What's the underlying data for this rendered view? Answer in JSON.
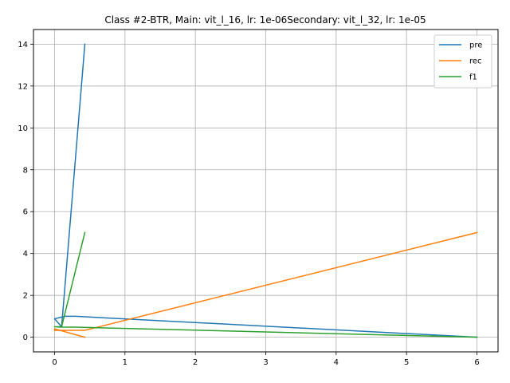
{
  "chart_data": {
    "type": "line",
    "title": "Class #2-BTR, Main: vit_l_16, lr: 1e-06Secondary: vit_l_32, lr: 1e-05",
    "xlabel": "",
    "ylabel": "",
    "xlim": [
      -0.3,
      6.3
    ],
    "ylim": [
      -0.7,
      14.7
    ],
    "xticks": [
      0,
      1,
      2,
      3,
      4,
      5,
      6
    ],
    "yticks": [
      0,
      2,
      4,
      6,
      8,
      10,
      12,
      14
    ],
    "grid": true,
    "legend_position": "top-right",
    "series": [
      {
        "name": "pre",
        "color": "#1f77b4",
        "x": [
          0.43,
          0.1,
          0.0,
          0.15,
          0.3,
          6.0
        ],
        "y": [
          14.0,
          0.5,
          0.88,
          1.0,
          1.0,
          0.0
        ]
      },
      {
        "name": "rec",
        "color": "#ff7f0e",
        "x": [
          6.0,
          0.43,
          0.0,
          0.0,
          0.43
        ],
        "y": [
          5.0,
          0.33,
          0.33,
          0.4,
          0.0
        ]
      },
      {
        "name": "f1",
        "color": "#2ca02c",
        "x": [
          0.43,
          0.1,
          0.0,
          0.1,
          0.3,
          6.0
        ],
        "y": [
          5.0,
          0.5,
          0.5,
          0.48,
          0.48,
          0.0
        ]
      }
    ]
  }
}
